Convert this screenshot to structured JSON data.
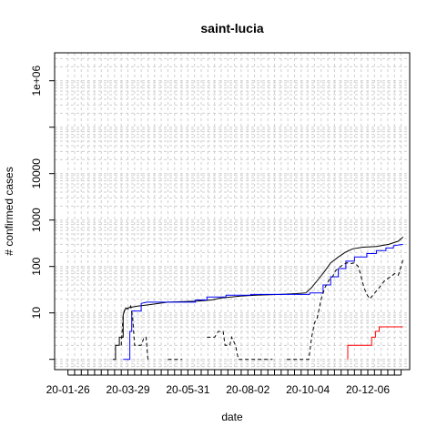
{
  "chart_data": {
    "type": "line",
    "title": "saint-lucia",
    "xlabel": "date",
    "ylabel": "# confirmed cases",
    "scale": "log10",
    "grid": true,
    "x_tick_labels": [
      "20-01-26",
      "20-03-29",
      "20-05-31",
      "20-08-02",
      "20-10-04",
      "20-12-06"
    ],
    "x_ticks": [
      "2020-01-26",
      "2020-03-29",
      "2020-05-31",
      "2020-08-02",
      "2020-10-04",
      "2020-12-06"
    ],
    "x_range": [
      "2020-01-12",
      "2021-01-19"
    ],
    "y_tick_labels": [
      "10",
      "100",
      "1000",
      "10000",
      "1e+06"
    ],
    "y_ticks": [
      10,
      100,
      1000,
      10000,
      1000000
    ],
    "y_range": [
      0.6,
      4000000
    ],
    "series": [
      {
        "color": "#000000",
        "dash": "solid",
        "points": [
          [
            "2020-03-13",
            1
          ],
          [
            "2020-03-16",
            1
          ],
          [
            "2020-03-16",
            2
          ],
          [
            "2020-03-20",
            2
          ],
          [
            "2020-03-20",
            3
          ],
          [
            "2020-03-24",
            3
          ],
          [
            "2020-03-24",
            9
          ],
          [
            "2020-03-26",
            12
          ],
          [
            "2020-03-30",
            13
          ],
          [
            "2020-04-08",
            14
          ],
          [
            "2020-04-20",
            15
          ],
          [
            "2020-05-10",
            17
          ],
          [
            "2020-06-10",
            18
          ],
          [
            "2020-06-25",
            19
          ],
          [
            "2020-07-05",
            21
          ],
          [
            "2020-07-25",
            23
          ],
          [
            "2020-08-10",
            24
          ],
          [
            "2020-09-05",
            25
          ],
          [
            "2020-09-22",
            26
          ],
          [
            "2020-10-02",
            27
          ],
          [
            "2020-10-08",
            35
          ],
          [
            "2020-10-14",
            50
          ],
          [
            "2020-10-22",
            80
          ],
          [
            "2020-10-28",
            120
          ],
          [
            "2020-11-05",
            160
          ],
          [
            "2020-11-12",
            200
          ],
          [
            "2020-11-20",
            240
          ],
          [
            "2020-12-01",
            260
          ],
          [
            "2020-12-15",
            270
          ],
          [
            "2020-12-28",
            300
          ],
          [
            "2021-01-07",
            350
          ],
          [
            "2021-01-12",
            430
          ]
        ]
      },
      {
        "color": "#0000ff",
        "dash": "solid",
        "points": [
          [
            "2020-03-24",
            1
          ],
          [
            "2020-03-31",
            1
          ],
          [
            "2020-03-31",
            4
          ],
          [
            "2020-04-02",
            4
          ],
          [
            "2020-04-02",
            11
          ],
          [
            "2020-04-12",
            11
          ],
          [
            "2020-04-12",
            16
          ],
          [
            "2020-04-18",
            17
          ],
          [
            "2020-06-08",
            17
          ],
          [
            "2020-06-08",
            19
          ],
          [
            "2020-06-20",
            19
          ],
          [
            "2020-06-20",
            22
          ],
          [
            "2020-07-10",
            22
          ],
          [
            "2020-07-10",
            24
          ],
          [
            "2020-08-05",
            24
          ],
          [
            "2020-08-05",
            25
          ],
          [
            "2020-10-06",
            25
          ],
          [
            "2020-10-06",
            27
          ],
          [
            "2020-10-20",
            27
          ],
          [
            "2020-10-20",
            40
          ],
          [
            "2020-10-28",
            40
          ],
          [
            "2020-10-28",
            60
          ],
          [
            "2020-11-05",
            60
          ],
          [
            "2020-11-05",
            90
          ],
          [
            "2020-11-13",
            90
          ],
          [
            "2020-11-13",
            130
          ],
          [
            "2020-11-22",
            130
          ],
          [
            "2020-11-22",
            160
          ],
          [
            "2020-12-05",
            160
          ],
          [
            "2020-12-05",
            190
          ],
          [
            "2020-12-15",
            190
          ],
          [
            "2020-12-15",
            220
          ],
          [
            "2020-12-25",
            220
          ],
          [
            "2020-12-25",
            250
          ],
          [
            "2021-01-02",
            250
          ],
          [
            "2021-01-02",
            280
          ],
          [
            "2021-01-12",
            300
          ]
        ]
      },
      {
        "color": "#ff0000",
        "dash": "solid",
        "points": [
          [
            "2020-11-15",
            1
          ],
          [
            "2020-11-15",
            2
          ],
          [
            "2020-12-10",
            2
          ],
          [
            "2020-12-10",
            3
          ],
          [
            "2020-12-14",
            3
          ],
          [
            "2020-12-14",
            4
          ],
          [
            "2020-12-18",
            4
          ],
          [
            "2020-12-18",
            5
          ],
          [
            "2021-01-12",
            5
          ]
        ]
      },
      {
        "color": "#000000",
        "dash": "dashed",
        "points": [
          [
            "2020-03-22",
            2
          ],
          [
            "2020-03-24",
            9
          ],
          [
            "2020-03-26",
            13
          ],
          [
            "2020-03-30",
            12
          ],
          [
            "2020-04-01",
            14
          ],
          [
            "2020-04-03",
            8
          ],
          [
            "2020-04-05",
            2
          ],
          [
            "2020-04-09",
            2
          ],
          [
            "2020-04-12",
            2
          ],
          [
            "2020-04-15",
            3
          ],
          [
            "2020-04-17",
            3
          ],
          [
            "2020-04-19",
            1
          ],
          [
            "2020-04-22",
            1
          ]
        ]
      },
      {
        "color": "#000000",
        "dash": "dashed",
        "points": [
          [
            "2020-05-10",
            1
          ],
          [
            "2020-05-25",
            1
          ]
        ]
      },
      {
        "color": "#000000",
        "dash": "dashed",
        "points": [
          [
            "2020-06-20",
            3
          ],
          [
            "2020-06-28",
            3
          ],
          [
            "2020-07-02",
            4
          ],
          [
            "2020-07-07",
            4
          ],
          [
            "2020-07-09",
            2
          ],
          [
            "2020-07-14",
            2
          ],
          [
            "2020-07-16",
            3
          ],
          [
            "2020-07-20",
            2
          ],
          [
            "2020-07-23",
            1
          ],
          [
            "2020-08-28",
            1
          ]
        ]
      },
      {
        "color": "#000000",
        "dash": "dashed",
        "points": [
          [
            "2020-09-12",
            1
          ],
          [
            "2020-10-05",
            1
          ],
          [
            "2020-10-08",
            3
          ],
          [
            "2020-10-11",
            6
          ],
          [
            "2020-10-14",
            8
          ],
          [
            "2020-10-18",
            20
          ],
          [
            "2020-10-22",
            35
          ],
          [
            "2020-10-26",
            50
          ],
          [
            "2020-10-30",
            60
          ],
          [
            "2020-11-02",
            80
          ],
          [
            "2020-11-06",
            95
          ],
          [
            "2020-11-10",
            110
          ],
          [
            "2020-11-14",
            120
          ],
          [
            "2020-11-18",
            115
          ],
          [
            "2020-11-22",
            120
          ],
          [
            "2020-11-26",
            100
          ],
          [
            "2020-11-29",
            60
          ],
          [
            "2020-12-02",
            35
          ],
          [
            "2020-12-05",
            25
          ],
          [
            "2020-12-08",
            20
          ],
          [
            "2020-12-12",
            25
          ],
          [
            "2020-12-18",
            35
          ],
          [
            "2020-12-24",
            50
          ],
          [
            "2020-12-30",
            60
          ],
          [
            "2021-01-03",
            70
          ],
          [
            "2021-01-07",
            65
          ],
          [
            "2021-01-10",
            100
          ],
          [
            "2021-01-12",
            140
          ]
        ]
      }
    ]
  }
}
